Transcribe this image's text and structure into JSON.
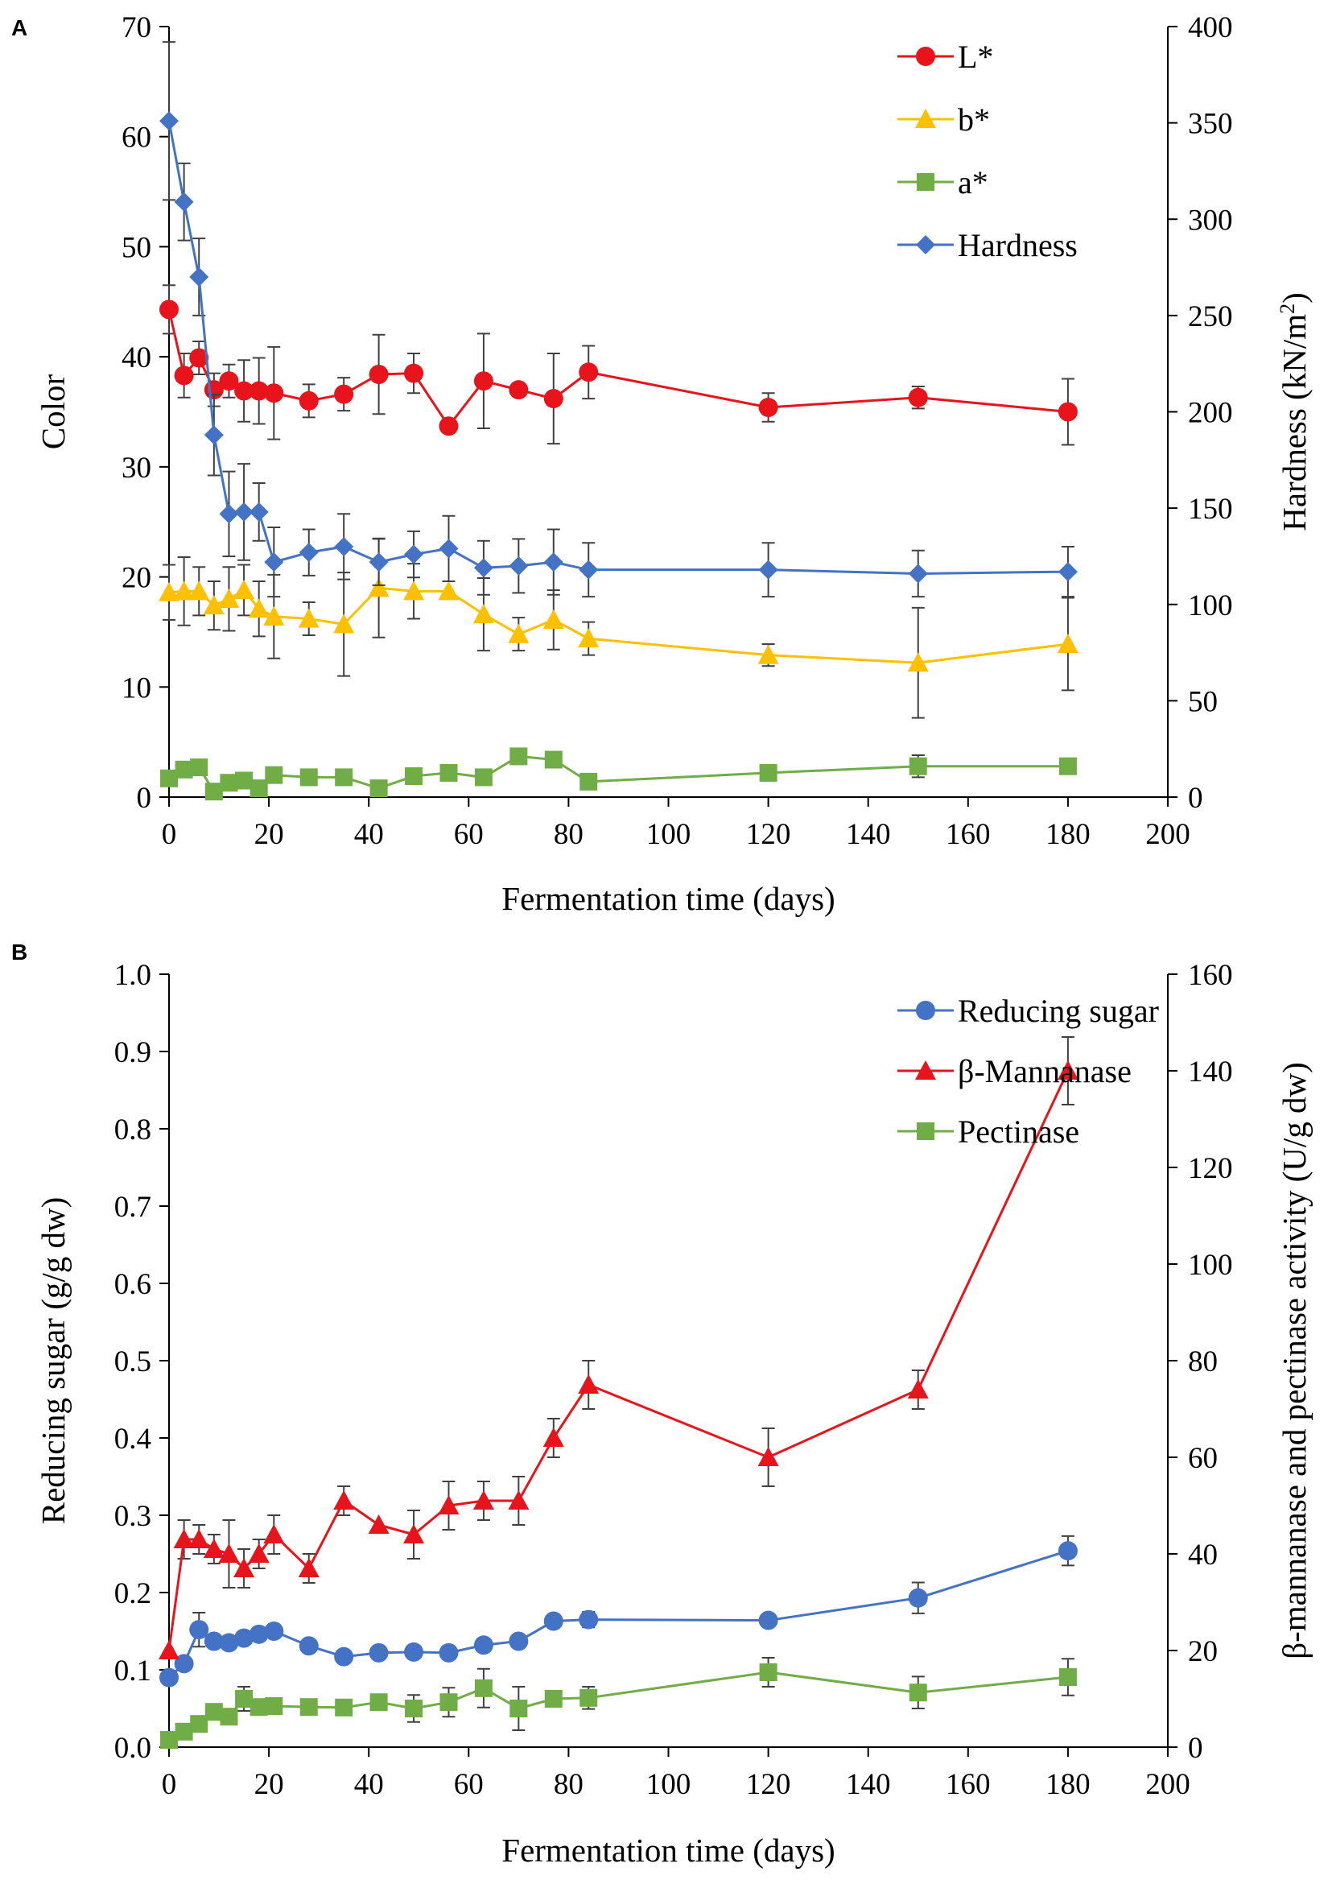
{
  "chart_data": [
    {
      "type": "line",
      "panel_label": "A",
      "xlabel": "Fermentation time (days)",
      "ylabel_left": "Color",
      "ylabel_right": "Hardness (kN/m²)",
      "ylabel_right_main": "Hardness (kN/m",
      "ylabel_right_sup": "2",
      "ylabel_right_end": ")",
      "xlim": [
        0,
        200
      ],
      "ylim_left": [
        0,
        70
      ],
      "ylim_right": [
        0,
        400
      ],
      "xticks": [
        "0",
        "20",
        "40",
        "60",
        "80",
        "100",
        "120",
        "140",
        "160",
        "180",
        "200"
      ],
      "yticks_left": [
        "0",
        "10",
        "20",
        "30",
        "40",
        "50",
        "60",
        "70"
      ],
      "yticks_right": [
        "0",
        "50",
        "100",
        "150",
        "200",
        "250",
        "300",
        "350",
        "400"
      ],
      "legend_position": "top-right",
      "series": [
        {
          "name": "L*",
          "axis": "left",
          "color": "#e8141c",
          "marker": "circle",
          "x": [
            0,
            3,
            6,
            9,
            12,
            15,
            18,
            21,
            28,
            35,
            42,
            49,
            56,
            63,
            70,
            77,
            84,
            120,
            150,
            180
          ],
          "y": [
            44.3,
            38.3,
            39.9,
            37.0,
            37.8,
            36.9,
            36.9,
            36.7,
            36.0,
            36.6,
            38.4,
            38.5,
            33.7,
            37.8,
            37.0,
            36.2,
            38.6,
            35.4,
            36.3,
            35.0
          ],
          "err": [
            2.2,
            2.0,
            1.5,
            1.5,
            1.5,
            2.8,
            3.0,
            4.2,
            1.5,
            1.5,
            3.6,
            1.8,
            0,
            4.3,
            0,
            4.1,
            2.4,
            1.3,
            1.0,
            3.0
          ]
        },
        {
          "name": "b*",
          "axis": "left",
          "color": "#ffc000",
          "marker": "triangle",
          "x": [
            0,
            3,
            6,
            9,
            12,
            15,
            18,
            21,
            28,
            35,
            42,
            49,
            56,
            63,
            70,
            77,
            84,
            120,
            150,
            180
          ],
          "y": [
            18.6,
            18.7,
            18.7,
            17.4,
            18.0,
            18.8,
            17.1,
            16.4,
            16.2,
            15.7,
            19.0,
            18.7,
            18.7,
            16.6,
            14.8,
            16.1,
            14.4,
            12.9,
            12.2,
            13.9
          ],
          "err": [
            2.5,
            3.1,
            2.2,
            2.2,
            2.9,
            2.3,
            2.5,
            3.8,
            1.5,
            4.7,
            4.5,
            2.5,
            0,
            3.3,
            1.5,
            2.7,
            1.5,
            1.0,
            5.0,
            4.2
          ]
        },
        {
          "name": "a*",
          "axis": "left",
          "color": "#70ad47",
          "marker": "square",
          "x": [
            0,
            3,
            6,
            9,
            12,
            15,
            18,
            21,
            28,
            35,
            42,
            49,
            56,
            63,
            70,
            77,
            84,
            120,
            150,
            180
          ],
          "y": [
            1.7,
            2.5,
            2.7,
            0.5,
            1.3,
            1.5,
            0.8,
            2.0,
            1.8,
            1.8,
            0.8,
            1.9,
            2.2,
            1.8,
            3.7,
            3.4,
            1.4,
            2.2,
            2.8,
            2.8
          ],
          "err": [
            0.5,
            0.5,
            0.5,
            0.4,
            0.4,
            0.4,
            0.4,
            0.4,
            0.4,
            0.4,
            0.4,
            0.4,
            0.4,
            0.4,
            0.4,
            0.4,
            0.4,
            0.4,
            1.0,
            0.4
          ]
        },
        {
          "name": "Hardness",
          "axis": "right",
          "color": "#4472c4",
          "marker": "diamond",
          "x": [
            0,
            3,
            6,
            9,
            12,
            15,
            18,
            21,
            28,
            35,
            42,
            49,
            56,
            63,
            70,
            77,
            84,
            120,
            150,
            180
          ],
          "y": [
            351,
            309,
            270,
            188,
            147,
            148,
            148,
            122,
            127,
            130,
            122,
            126,
            129,
            119,
            120,
            122,
            118,
            118,
            116,
            117
          ],
          "err": [
            41,
            20,
            20,
            21,
            22,
            25,
            15,
            18,
            12,
            17,
            12,
            12,
            17,
            14,
            14,
            17,
            14,
            14,
            12,
            13
          ]
        }
      ]
    },
    {
      "type": "line",
      "panel_label": "B",
      "xlabel": "Fermentation time (days)",
      "ylabel_left": "Reducing sugar (g/g dw)",
      "ylabel_right": "β-mannanase and pectinase activity (U/g dw)",
      "xlim": [
        0,
        200
      ],
      "ylim_left": [
        0,
        1.0
      ],
      "ylim_right": [
        0,
        160
      ],
      "xticks": [
        "0",
        "20",
        "40",
        "60",
        "80",
        "100",
        "120",
        "140",
        "160",
        "180",
        "200"
      ],
      "yticks_left": [
        "0.0",
        "0.1",
        "0.2",
        "0.3",
        "0.4",
        "0.5",
        "0.6",
        "0.7",
        "0.8",
        "0.9",
        "1.0"
      ],
      "yticks_right": [
        "0",
        "20",
        "40",
        "60",
        "80",
        "100",
        "120",
        "140",
        "160"
      ],
      "legend_position": "top-right",
      "series": [
        {
          "name": "Reducing sugar",
          "axis": "left",
          "color": "#4472c4",
          "marker": "circle",
          "x": [
            0,
            3,
            6,
            9,
            12,
            15,
            18,
            21,
            28,
            35,
            42,
            49,
            56,
            63,
            70,
            77,
            84,
            120,
            150,
            180
          ],
          "y": [
            0.09,
            0.108,
            0.152,
            0.137,
            0.135,
            0.141,
            0.146,
            0.15,
            0.131,
            0.117,
            0.122,
            0.123,
            0.122,
            0.132,
            0.137,
            0.163,
            0.165,
            0.164,
            0.193,
            0.254
          ],
          "err": [
            0.004,
            0.004,
            0.022,
            0.004,
            0.004,
            0.004,
            0.004,
            0.004,
            0.004,
            0.004,
            0.004,
            0.004,
            0.004,
            0.004,
            0.004,
            0.004,
            0.01,
            0.004,
            0.02,
            0.019
          ]
        },
        {
          "name": "β-Mannanase",
          "axis": "right",
          "color": "#e8141c",
          "marker": "triangle",
          "x": [
            0,
            3,
            6,
            9,
            12,
            15,
            18,
            21,
            28,
            35,
            42,
            49,
            56,
            63,
            70,
            77,
            84,
            120,
            150,
            180
          ],
          "y": [
            20,
            43,
            43,
            41,
            40,
            37,
            40,
            44,
            37,
            51,
            46,
            44,
            50,
            51,
            51,
            64,
            75,
            60,
            74,
            140
          ],
          "err": [
            0,
            4,
            3,
            3,
            7,
            4,
            3,
            4,
            3,
            3,
            0,
            5,
            5,
            4,
            5,
            4,
            5,
            6,
            4,
            7
          ]
        },
        {
          "name": "Pectinase",
          "axis": "right",
          "color": "#70ad47",
          "marker": "square",
          "x": [
            0,
            3,
            6,
            9,
            12,
            15,
            18,
            21,
            28,
            35,
            42,
            49,
            56,
            63,
            70,
            77,
            84,
            120,
            150,
            180
          ],
          "y": [
            1.5,
            3.2,
            4.8,
            7.3,
            6.3,
            10.0,
            8.3,
            8.5,
            8.3,
            8.2,
            9.3,
            8.0,
            9.3,
            12.2,
            8.0,
            10.0,
            10.2,
            15.5,
            11.3,
            14.5
          ],
          "err": [
            0,
            0,
            0,
            1.0,
            1.5,
            2.5,
            1.0,
            1.0,
            1.5,
            0.8,
            0.8,
            2.8,
            3.0,
            4.0,
            4.5,
            1.0,
            2.3,
            3.0,
            3.3,
            3.8
          ]
        }
      ]
    }
  ]
}
